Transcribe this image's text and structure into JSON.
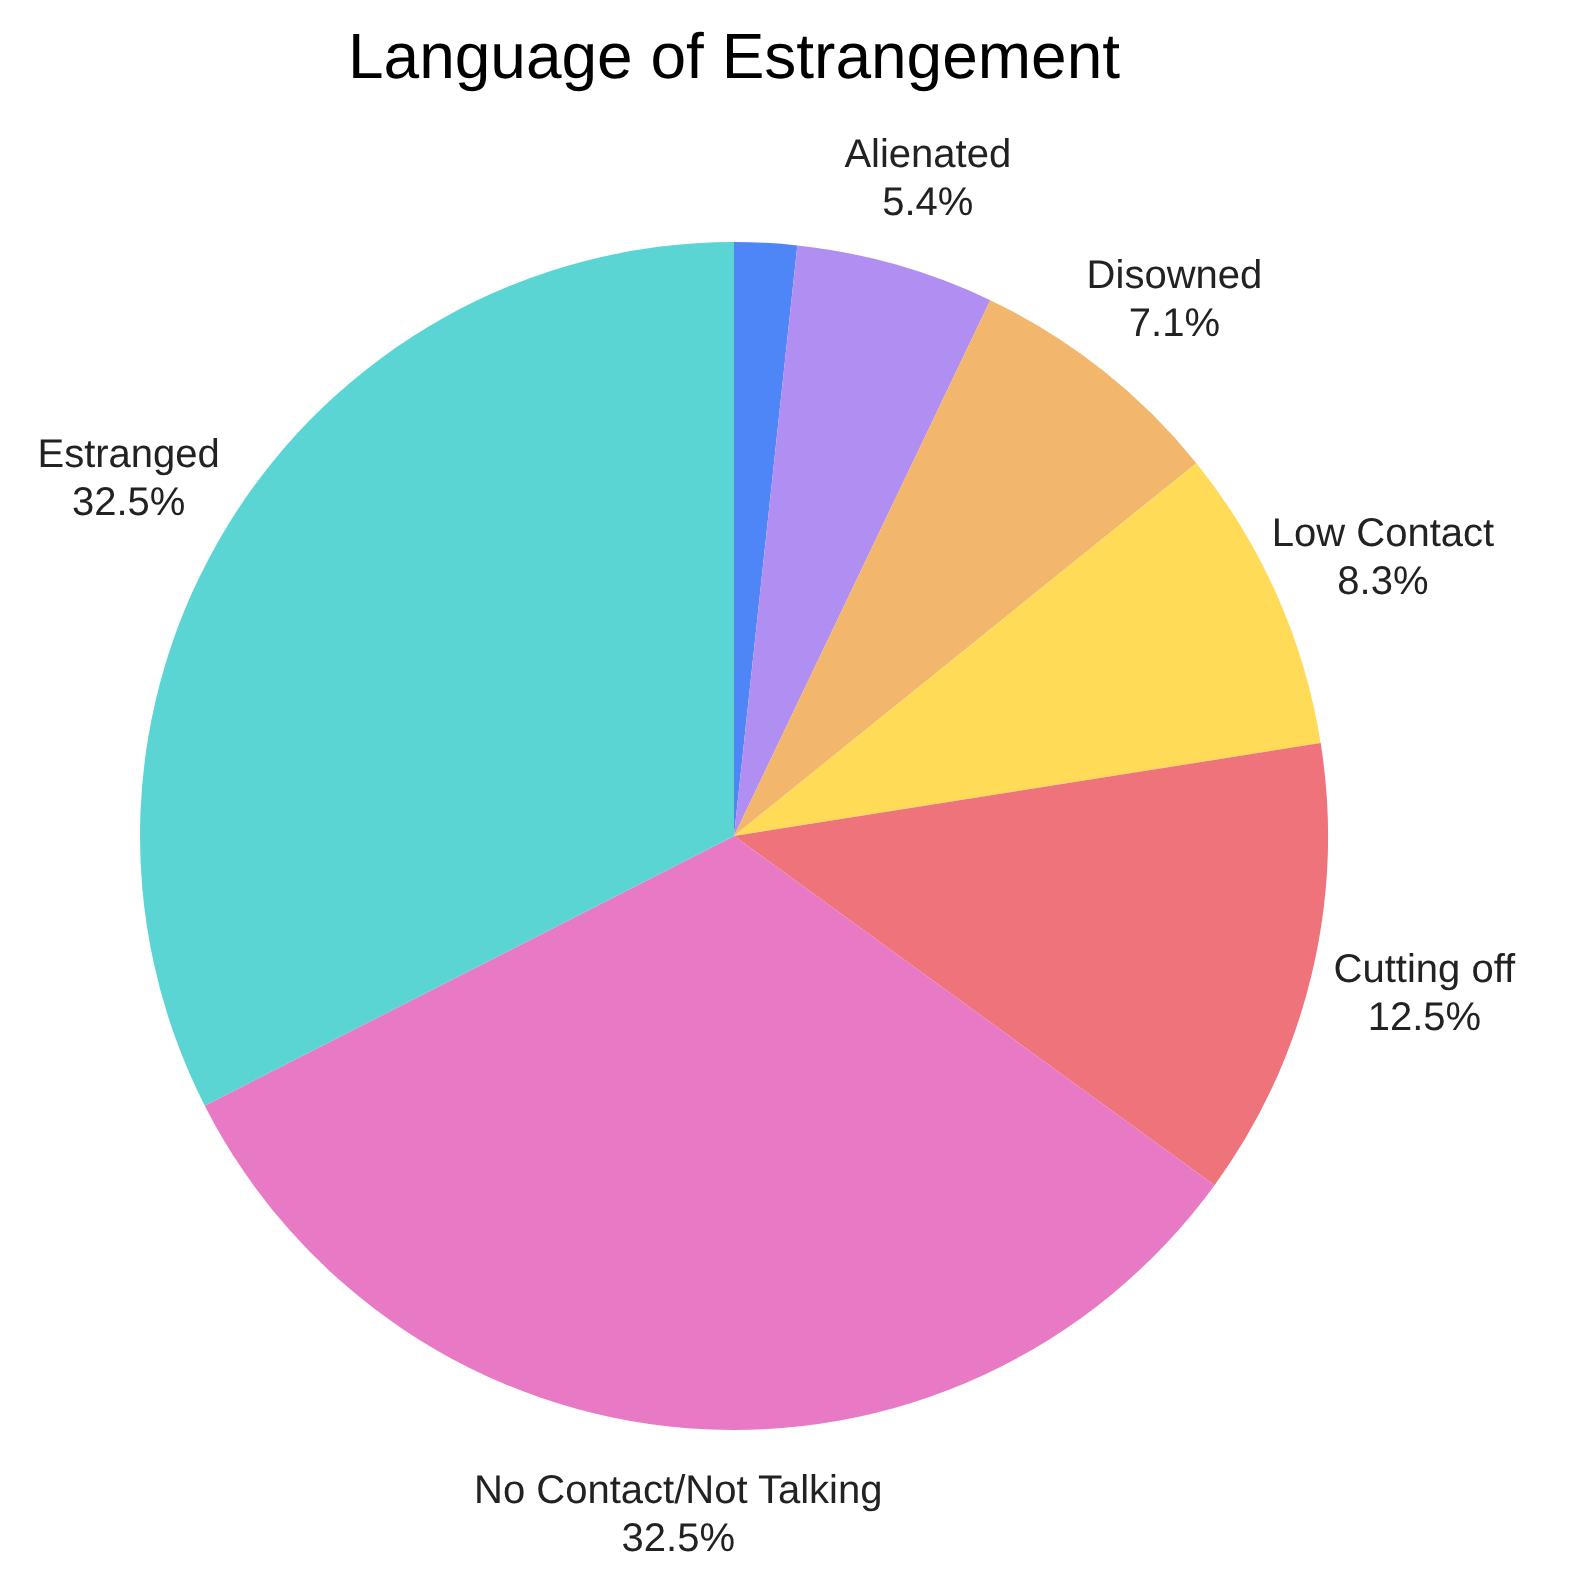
{
  "chart_data": {
    "type": "pie",
    "title": "Language of Estrangement",
    "categories": [
      null,
      "Alienated",
      "Disowned",
      "Low Contact",
      "Cutting off",
      "No Contact/Not Talking",
      "Estranged"
    ],
    "values": [
      1.7,
      5.4,
      7.1,
      8.3,
      12.5,
      32.5,
      32.5
    ],
    "colors": [
      "#4f86f7",
      "#b08ef2",
      "#f2b76c",
      "#ffdb58",
      "#ee737a",
      "#e879c4",
      "#5bd5d3"
    ],
    "value_labels": [
      null,
      "5.4%",
      "7.1%",
      "8.3%",
      "12.5%",
      "32.5%",
      "32.5%"
    ]
  }
}
